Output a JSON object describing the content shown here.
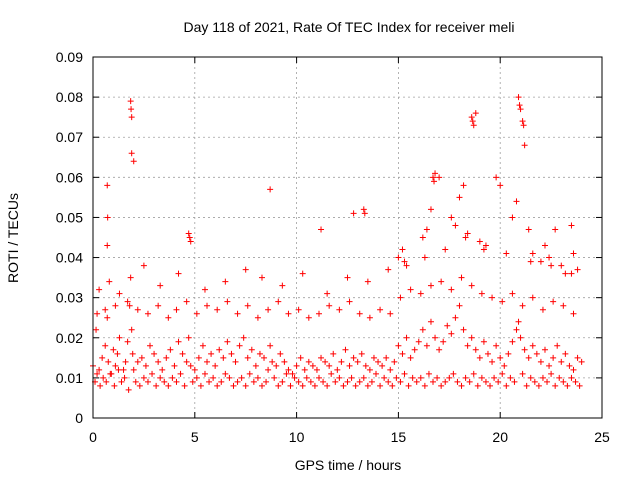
{
  "chart_data": {
    "type": "scatter",
    "title": "Day 118 of 2021, Rate Of TEC Index for receiver meli",
    "xlabel": "GPS time / hours",
    "ylabel": "ROTI / TECUs",
    "xlim": [
      0,
      25
    ],
    "ylim": [
      0,
      0.09
    ],
    "xticks": [
      "0",
      "5",
      "10",
      "15",
      "20",
      "25"
    ],
    "yticks": [
      "0",
      "0.01",
      "0.02",
      "0.03",
      "0.04",
      "0.05",
      "0.06",
      "0.07",
      "0.08",
      "0.09"
    ],
    "xtick_values": [
      0,
      5,
      10,
      15,
      20,
      25
    ],
    "ytick_values": [
      0,
      0.01,
      0.02,
      0.03,
      0.04,
      0.05,
      0.06,
      0.07,
      0.08,
      0.09
    ],
    "grid": true,
    "marker": "+",
    "color": "#ff0000",
    "series": [
      {
        "values_note_free": true,
        "x": [
          0.0,
          0.15,
          0.3,
          0.45,
          0.6,
          0.7,
          0.75,
          0.85,
          1.0,
          1.1,
          1.2,
          1.3,
          1.5,
          1.6,
          1.7,
          1.8,
          1.85,
          1.9,
          1.95,
          2.0,
          2.2,
          2.4,
          2.6,
          2.8,
          3.0,
          3.2,
          3.4,
          3.6,
          3.8,
          4.0,
          4.2,
          4.4,
          4.6,
          4.7,
          4.8,
          5.0,
          5.2,
          5.4,
          5.6,
          5.8,
          6.0,
          6.2,
          6.4,
          6.6,
          6.8,
          7.0,
          7.2,
          7.4,
          7.6,
          7.8,
          8.0,
          8.2,
          8.4,
          8.6,
          8.7,
          8.8,
          9.0,
          9.2,
          9.4,
          9.6,
          9.8,
          10.0,
          10.2,
          10.4,
          10.6,
          10.8,
          11.0,
          11.2,
          11.4,
          11.6,
          11.8,
          12.0,
          12.2,
          12.4,
          12.6,
          12.8,
          13.0,
          13.2,
          13.4,
          13.6,
          13.8,
          14.0,
          14.2,
          14.4,
          14.6,
          14.8,
          15.0,
          15.2,
          15.4,
          15.6,
          15.8,
          16.0,
          16.2,
          16.4,
          16.6,
          16.8,
          17.0,
          17.2,
          17.4,
          17.6,
          17.8,
          18.0,
          18.2,
          18.4,
          18.6,
          18.8,
          19.0,
          19.2,
          19.4,
          19.6,
          19.8,
          20.0,
          20.2,
          20.4,
          20.6,
          20.8,
          20.9,
          21.0,
          21.2,
          21.4,
          21.6,
          21.8,
          22.0,
          22.2,
          22.4,
          22.6,
          22.8,
          23.0,
          23.2,
          23.4,
          23.6,
          23.8,
          24.0,
          0.1,
          0.2,
          0.35,
          0.5,
          0.65,
          0.9,
          1.05,
          1.25,
          1.4,
          1.55,
          1.75,
          2.1,
          2.3,
          2.5,
          2.7,
          2.9,
          3.1,
          3.3,
          3.5,
          3.7,
          3.9,
          4.1,
          4.3,
          4.5,
          4.9,
          5.1,
          5.3,
          5.5,
          5.7,
          5.9,
          6.1,
          6.3,
          6.5,
          6.7,
          6.9,
          7.1,
          7.3,
          7.5,
          7.7,
          7.9,
          8.1,
          8.3,
          8.5,
          8.9,
          9.1,
          9.3,
          9.5,
          9.7,
          9.9,
          10.1,
          10.3,
          10.5,
          10.7,
          10.9,
          11.1,
          11.3,
          11.5,
          11.7,
          11.9,
          12.1,
          12.3,
          12.5,
          12.7,
          12.9,
          13.1,
          13.3,
          13.5,
          13.7,
          13.9,
          14.1,
          14.3,
          14.5,
          14.7,
          14.9,
          15.1,
          15.3,
          15.5,
          15.7,
          15.9,
          16.1,
          16.3,
          16.5,
          16.7,
          16.9,
          17.1,
          17.3,
          17.5,
          17.7,
          17.9,
          18.1,
          18.3,
          18.5,
          18.7,
          18.9,
          19.1,
          19.3,
          19.5,
          19.7,
          19.9,
          20.1,
          20.3,
          20.5,
          20.7,
          21.1,
          21.3,
          21.5,
          21.7,
          21.9,
          22.1,
          22.3,
          22.5,
          22.7,
          22.9,
          23.1,
          23.3,
          23.5,
          23.7,
          23.9,
          1.85,
          1.87,
          1.9,
          1.9,
          2.0,
          0.7,
          0.72,
          0.7,
          16.7,
          16.75,
          16.8,
          17.0,
          18.6,
          18.65,
          18.7,
          18.8,
          20.9,
          20.95,
          21.0,
          21.1,
          21.15,
          21.2,
          12.8,
          13.3,
          13.35,
          8.7,
          19.8,
          20.0,
          4.7,
          4.75,
          4.8,
          22.7,
          23.5,
          11.2,
          0.3,
          0.8,
          1.3,
          2.5,
          3.3,
          4.2,
          5.5,
          6.5,
          7.5,
          8.3,
          9.3,
          10.3,
          11.5,
          12.5,
          13.5,
          14.5,
          15.3,
          16.3,
          17.3,
          18.3,
          19.3,
          20.3,
          21.5,
          22.5,
          23.5,
          15.0,
          15.2,
          15.4,
          16.2,
          16.4,
          16.6,
          17.6,
          17.8,
          18.0,
          18.2,
          18.4,
          19.0,
          19.2,
          20.6,
          20.8,
          21.4,
          21.6,
          22.0,
          22.2,
          22.4,
          23.0,
          23.2,
          23.6,
          23.8,
          0.2,
          0.6,
          1.1,
          1.7,
          2.2,
          2.7,
          3.2,
          3.7,
          4.1,
          4.6,
          5.1,
          5.6,
          6.1,
          6.6,
          7.1,
          7.6,
          8.1,
          8.6,
          9.1,
          9.6,
          10.1,
          10.6,
          11.1,
          11.6,
          12.1,
          12.6,
          13.1,
          13.6,
          14.1,
          14.6,
          15.1,
          15.6,
          16.1,
          16.6,
          17.1,
          17.6,
          18.1,
          18.6,
          19.1,
          19.6,
          20.1,
          20.6,
          21.1,
          21.6,
          22.1,
          22.6,
          23.1,
          23.6
        ],
        "y": [
          0.013,
          0.022,
          0.012,
          0.015,
          0.018,
          0.025,
          0.014,
          0.011,
          0.017,
          0.013,
          0.016,
          0.02,
          0.012,
          0.014,
          0.019,
          0.028,
          0.035,
          0.022,
          0.016,
          0.012,
          0.014,
          0.015,
          0.013,
          0.018,
          0.016,
          0.014,
          0.012,
          0.015,
          0.017,
          0.013,
          0.019,
          0.016,
          0.014,
          0.02,
          0.013,
          0.012,
          0.015,
          0.018,
          0.014,
          0.016,
          0.013,
          0.017,
          0.015,
          0.019,
          0.016,
          0.014,
          0.018,
          0.02,
          0.015,
          0.017,
          0.013,
          0.016,
          0.015,
          0.012,
          0.018,
          0.014,
          0.013,
          0.016,
          0.014,
          0.012,
          0.011,
          0.013,
          0.015,
          0.012,
          0.014,
          0.013,
          0.012,
          0.015,
          0.014,
          0.013,
          0.016,
          0.012,
          0.014,
          0.017,
          0.013,
          0.015,
          0.014,
          0.016,
          0.013,
          0.012,
          0.015,
          0.014,
          0.013,
          0.015,
          0.012,
          0.014,
          0.018,
          0.016,
          0.02,
          0.015,
          0.017,
          0.019,
          0.022,
          0.018,
          0.024,
          0.02,
          0.017,
          0.019,
          0.023,
          0.021,
          0.025,
          0.028,
          0.022,
          0.018,
          0.02,
          0.017,
          0.015,
          0.019,
          0.016,
          0.014,
          0.018,
          0.015,
          0.013,
          0.016,
          0.019,
          0.022,
          0.024,
          0.02,
          0.017,
          0.015,
          0.018,
          0.016,
          0.014,
          0.017,
          0.013,
          0.015,
          0.018,
          0.014,
          0.016,
          0.013,
          0.012,
          0.015,
          0.014,
          0.009,
          0.011,
          0.008,
          0.01,
          0.009,
          0.011,
          0.008,
          0.012,
          0.009,
          0.01,
          0.007,
          0.009,
          0.008,
          0.01,
          0.009,
          0.011,
          0.008,
          0.01,
          0.009,
          0.008,
          0.01,
          0.009,
          0.011,
          0.008,
          0.009,
          0.01,
          0.008,
          0.011,
          0.009,
          0.01,
          0.008,
          0.009,
          0.011,
          0.01,
          0.008,
          0.009,
          0.01,
          0.008,
          0.011,
          0.009,
          0.01,
          0.008,
          0.009,
          0.01,
          0.008,
          0.009,
          0.011,
          0.008,
          0.01,
          0.009,
          0.008,
          0.01,
          0.009,
          0.008,
          0.01,
          0.009,
          0.008,
          0.011,
          0.009,
          0.01,
          0.008,
          0.009,
          0.01,
          0.008,
          0.009,
          0.01,
          0.008,
          0.009,
          0.011,
          0.008,
          0.01,
          0.009,
          0.008,
          0.01,
          0.009,
          0.011,
          0.008,
          0.01,
          0.009,
          0.01,
          0.008,
          0.011,
          0.009,
          0.01,
          0.008,
          0.009,
          0.01,
          0.011,
          0.009,
          0.008,
          0.01,
          0.009,
          0.011,
          0.008,
          0.01,
          0.009,
          0.008,
          0.01,
          0.009,
          0.011,
          0.008,
          0.01,
          0.009,
          0.011,
          0.008,
          0.01,
          0.009,
          0.008,
          0.01,
          0.009,
          0.011,
          0.008,
          0.01,
          0.009,
          0.008,
          0.01,
          0.009,
          0.008,
          0.079,
          0.077,
          0.075,
          0.066,
          0.064,
          0.058,
          0.05,
          0.043,
          0.06,
          0.059,
          0.061,
          0.06,
          0.075,
          0.074,
          0.073,
          0.076,
          0.08,
          0.078,
          0.077,
          0.074,
          0.073,
          0.068,
          0.051,
          0.052,
          0.051,
          0.057,
          0.06,
          0.058,
          0.046,
          0.045,
          0.044,
          0.047,
          0.048,
          0.047,
          0.032,
          0.034,
          0.031,
          0.038,
          0.033,
          0.036,
          0.032,
          0.034,
          0.037,
          0.035,
          0.033,
          0.036,
          0.031,
          0.035,
          0.034,
          0.037,
          0.039,
          0.04,
          0.042,
          0.045,
          0.043,
          0.041,
          0.039,
          0.038,
          0.036,
          0.04,
          0.042,
          0.038,
          0.045,
          0.047,
          0.052,
          0.05,
          0.048,
          0.055,
          0.058,
          0.046,
          0.044,
          0.042,
          0.05,
          0.054,
          0.047,
          0.041,
          0.039,
          0.043,
          0.04,
          0.038,
          0.036,
          0.041,
          0.037,
          0.026,
          0.027,
          0.028,
          0.029,
          0.027,
          0.026,
          0.028,
          0.025,
          0.027,
          0.029,
          0.026,
          0.028,
          0.027,
          0.029,
          0.026,
          0.028,
          0.025,
          0.027,
          0.029,
          0.026,
          0.027,
          0.025,
          0.026,
          0.028,
          0.027,
          0.029,
          0.026,
          0.025,
          0.027,
          0.026,
          0.03,
          0.032,
          0.031,
          0.033,
          0.034,
          0.032,
          0.035,
          0.033,
          0.031,
          0.03,
          0.029,
          0.031,
          0.028,
          0.03,
          0.027,
          0.029,
          0.028,
          0.026
        ]
      }
    ]
  }
}
